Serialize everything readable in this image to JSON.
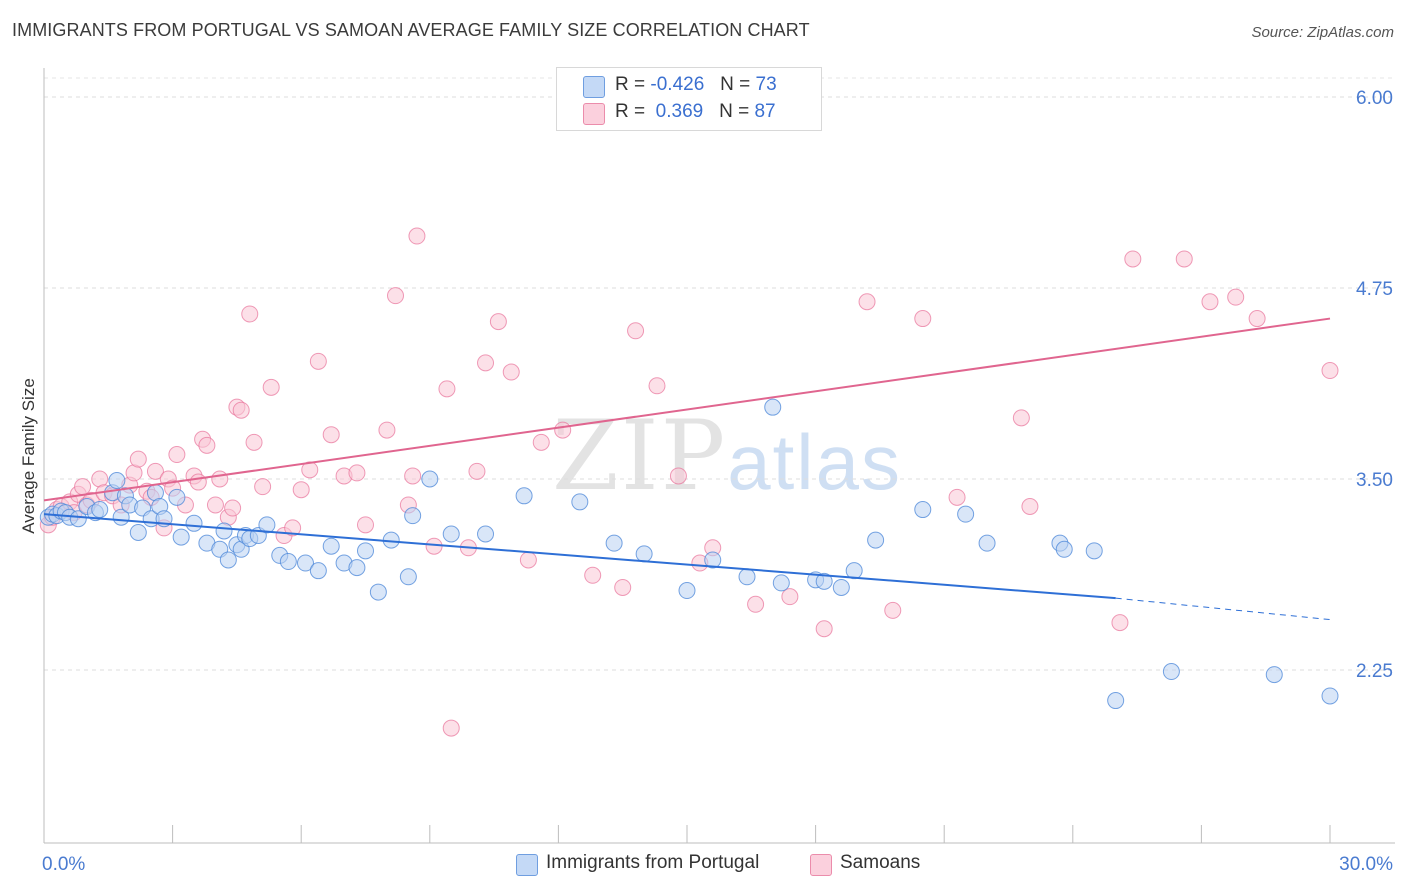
{
  "title": "IMMIGRANTS FROM PORTUGAL VS SAMOAN AVERAGE FAMILY SIZE CORRELATION CHART",
  "source": "Source: ZipAtlas.com",
  "watermark": {
    "zip": "ZIP",
    "atlas": "atlas"
  },
  "legend": {
    "r_label": "R =",
    "n_label": "N =",
    "series": [
      {
        "r": "-0.426",
        "n": "73",
        "color": "#aac8f0"
      },
      {
        "r": "0.369",
        "n": "87",
        "color": "#f7b6c9"
      }
    ]
  },
  "bottom_legend": [
    "Immigrants from Portugal",
    "Samoans"
  ],
  "chart_data": {
    "type": "scatter",
    "ylabel": "Average Family Size",
    "xlabel": "",
    "xlim": [
      0,
      30
    ],
    "ylim": [
      1.0,
      6.2
    ],
    "x_tick_labels": [
      "0.0%",
      "30.0%"
    ],
    "y_ticks": [
      2.25,
      3.5,
      4.75,
      6.0
    ],
    "y_tick_labels": [
      "2.25",
      "3.50",
      "4.75",
      "6.00"
    ],
    "grid": true,
    "colors": {
      "portugal": "#4a86d8",
      "samoan": "#e8729a",
      "portugal_fill": "#b9d1f3",
      "samoan_fill": "#f9c6d5"
    },
    "series": [
      {
        "name": "Immigrants from Portugal",
        "trend": {
          "x0": 0,
          "y0": 3.27,
          "x1": 25,
          "y1": 2.72,
          "x_dash_end": 30,
          "y_dash_end": 2.58
        },
        "points": [
          [
            0.1,
            3.25
          ],
          [
            0.2,
            3.27
          ],
          [
            0.3,
            3.26
          ],
          [
            0.4,
            3.29
          ],
          [
            0.5,
            3.28
          ],
          [
            0.6,
            3.25
          ],
          [
            0.8,
            3.24
          ],
          [
            1.0,
            3.32
          ],
          [
            1.2,
            3.28
          ],
          [
            1.3,
            3.3
          ],
          [
            1.6,
            3.41
          ],
          [
            1.7,
            3.49
          ],
          [
            1.8,
            3.25
          ],
          [
            1.9,
            3.39
          ],
          [
            2.0,
            3.33
          ],
          [
            2.2,
            3.15
          ],
          [
            2.3,
            3.31
          ],
          [
            2.5,
            3.24
          ],
          [
            2.6,
            3.41
          ],
          [
            2.7,
            3.32
          ],
          [
            2.8,
            3.24
          ],
          [
            3.1,
            3.38
          ],
          [
            3.2,
            3.12
          ],
          [
            3.5,
            3.21
          ],
          [
            3.8,
            3.08
          ],
          [
            4.1,
            3.04
          ],
          [
            4.2,
            3.16
          ],
          [
            4.3,
            2.97
          ],
          [
            4.5,
            3.07
          ],
          [
            4.6,
            3.04
          ],
          [
            4.7,
            3.13
          ],
          [
            4.8,
            3.11
          ],
          [
            5.0,
            3.13
          ],
          [
            5.2,
            3.2
          ],
          [
            5.5,
            3.0
          ],
          [
            5.7,
            2.96
          ],
          [
            6.1,
            2.95
          ],
          [
            6.4,
            2.9
          ],
          [
            6.7,
            3.06
          ],
          [
            7.0,
            2.95
          ],
          [
            7.3,
            2.92
          ],
          [
            7.5,
            3.03
          ],
          [
            7.8,
            2.76
          ],
          [
            8.1,
            3.1
          ],
          [
            8.5,
            2.86
          ],
          [
            8.6,
            3.26
          ],
          [
            9.0,
            3.5
          ],
          [
            9.5,
            3.14
          ],
          [
            10.3,
            3.14
          ],
          [
            11.2,
            3.39
          ],
          [
            12.5,
            3.35
          ],
          [
            13.3,
            3.08
          ],
          [
            14.0,
            3.01
          ],
          [
            15.0,
            2.77
          ],
          [
            15.6,
            2.97
          ],
          [
            16.4,
            2.86
          ],
          [
            17.2,
            2.82
          ],
          [
            18.0,
            2.84
          ],
          [
            18.2,
            2.83
          ],
          [
            18.6,
            2.79
          ],
          [
            18.9,
            2.9
          ],
          [
            19.4,
            3.1
          ],
          [
            20.5,
            3.3
          ],
          [
            21.5,
            3.27
          ],
          [
            22.0,
            3.08
          ],
          [
            23.7,
            3.08
          ],
          [
            23.8,
            3.04
          ],
          [
            24.5,
            3.03
          ],
          [
            25.0,
            2.05
          ],
          [
            26.3,
            2.24
          ],
          [
            28.7,
            2.22
          ],
          [
            30.0,
            2.08
          ],
          [
            17.0,
            3.97
          ]
        ]
      },
      {
        "name": "Samoans",
        "trend": {
          "x0": 0,
          "y0": 3.36,
          "x1": 30,
          "y1": 4.55
        },
        "points": [
          [
            0.1,
            3.2
          ],
          [
            0.2,
            3.25
          ],
          [
            0.3,
            3.3
          ],
          [
            0.4,
            3.32
          ],
          [
            0.6,
            3.35
          ],
          [
            0.7,
            3.28
          ],
          [
            0.8,
            3.4
          ],
          [
            0.9,
            3.45
          ],
          [
            1.0,
            3.33
          ],
          [
            1.1,
            3.36
          ],
          [
            1.3,
            3.5
          ],
          [
            1.4,
            3.41
          ],
          [
            1.6,
            3.39
          ],
          [
            1.8,
            3.33
          ],
          [
            2.0,
            3.46
          ],
          [
            2.1,
            3.54
          ],
          [
            2.2,
            3.63
          ],
          [
            2.4,
            3.42
          ],
          [
            2.5,
            3.38
          ],
          [
            2.6,
            3.55
          ],
          [
            2.8,
            3.18
          ],
          [
            2.9,
            3.5
          ],
          [
            3.0,
            3.44
          ],
          [
            3.1,
            3.66
          ],
          [
            3.3,
            3.33
          ],
          [
            3.5,
            3.52
          ],
          [
            3.6,
            3.48
          ],
          [
            3.7,
            3.76
          ],
          [
            3.8,
            3.72
          ],
          [
            4.0,
            3.33
          ],
          [
            4.1,
            3.5
          ],
          [
            4.3,
            3.25
          ],
          [
            4.4,
            3.31
          ],
          [
            4.5,
            3.97
          ],
          [
            4.6,
            3.95
          ],
          [
            4.8,
            4.58
          ],
          [
            4.9,
            3.74
          ],
          [
            5.1,
            3.45
          ],
          [
            5.3,
            4.1
          ],
          [
            5.6,
            3.13
          ],
          [
            5.8,
            3.18
          ],
          [
            6.0,
            3.43
          ],
          [
            6.2,
            3.56
          ],
          [
            6.4,
            4.27
          ],
          [
            6.7,
            3.79
          ],
          [
            7.0,
            3.52
          ],
          [
            7.3,
            3.54
          ],
          [
            7.5,
            3.2
          ],
          [
            8.0,
            3.82
          ],
          [
            8.2,
            4.7
          ],
          [
            8.5,
            3.33
          ],
          [
            8.6,
            3.52
          ],
          [
            8.7,
            5.09
          ],
          [
            9.1,
            3.06
          ],
          [
            9.4,
            4.09
          ],
          [
            9.9,
            3.05
          ],
          [
            10.1,
            3.55
          ],
          [
            10.3,
            4.26
          ],
          [
            10.6,
            4.53
          ],
          [
            10.9,
            4.2
          ],
          [
            11.3,
            2.97
          ],
          [
            11.6,
            3.74
          ],
          [
            12.1,
            3.82
          ],
          [
            12.8,
            2.87
          ],
          [
            13.5,
            2.79
          ],
          [
            13.8,
            4.47
          ],
          [
            14.3,
            4.11
          ],
          [
            14.8,
            3.52
          ],
          [
            15.3,
            2.95
          ],
          [
            15.6,
            3.05
          ],
          [
            16.6,
            2.68
          ],
          [
            17.4,
            2.73
          ],
          [
            18.2,
            2.52
          ],
          [
            19.2,
            4.66
          ],
          [
            19.8,
            2.64
          ],
          [
            20.5,
            4.55
          ],
          [
            21.3,
            3.38
          ],
          [
            22.8,
            3.9
          ],
          [
            25.4,
            4.94
          ],
          [
            26.6,
            4.94
          ],
          [
            27.2,
            4.66
          ],
          [
            27.8,
            4.69
          ],
          [
            28.3,
            4.55
          ],
          [
            30.0,
            4.21
          ],
          [
            9.5,
            1.87
          ],
          [
            23.0,
            3.32
          ],
          [
            25.1,
            2.56
          ]
        ]
      }
    ]
  }
}
